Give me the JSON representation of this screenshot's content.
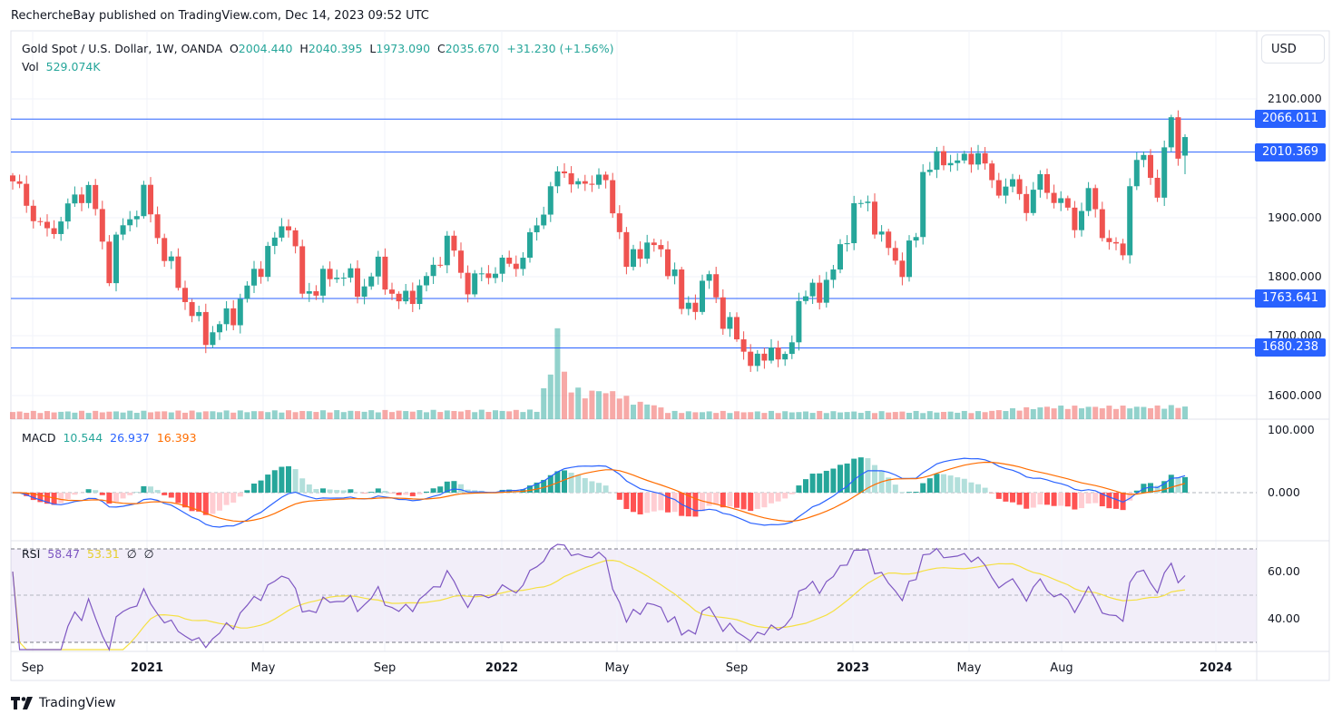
{
  "header": {
    "published": "RechercheBay published on TradingView.com, Dec 14, 2023 09:52 UTC",
    "symbol": "Gold Spot / U.S. Dollar, 1W, OANDA",
    "o_label": "O",
    "o": "2004.440",
    "h_label": "H",
    "h": "2040.395",
    "l_label": "L",
    "l": "1973.090",
    "c_label": "C",
    "c": "2035.670",
    "change": "+31.230 (+1.56%)",
    "vol_label": "Vol",
    "vol": "529.074K"
  },
  "currency": "USD",
  "macd_legend": {
    "label": "MACD",
    "hist": "10.544",
    "macd": "26.937",
    "signal": "16.393"
  },
  "rsi_legend": {
    "label": "RSI",
    "rsi": "58.47",
    "ma": "53.31",
    "n1": "∅",
    "n2": "∅"
  },
  "footer": {
    "brand": "TradingView"
  },
  "chart_data": {
    "type": "candlestick",
    "title": "Gold Spot / U.S. Dollar, 1W, OANDA",
    "colors": {
      "up": "#26a69a",
      "down": "#ef5350",
      "level": "#2962ff",
      "macd": "#2962ff",
      "signal": "#ff6d00",
      "rsi": "#7e57c2",
      "rsi_ma": "#f5e043"
    },
    "weeks": 171,
    "approx_weekly_close": [
      [
        0,
        1961
      ],
      [
        5,
        1869
      ],
      [
        9,
        1930
      ],
      [
        11,
        1953
      ],
      [
        14,
        1808
      ],
      [
        15,
        1861
      ],
      [
        19,
        1938
      ],
      [
        22,
        1838
      ],
      [
        26,
        1739
      ],
      [
        28,
        1700
      ],
      [
        32,
        1739
      ],
      [
        36,
        1823
      ],
      [
        40,
        1900
      ],
      [
        42,
        1770
      ],
      [
        46,
        1800
      ],
      [
        48,
        1808
      ],
      [
        50,
        1777
      ],
      [
        53,
        1815
      ],
      [
        56,
        1754
      ],
      [
        60,
        1793
      ],
      [
        63,
        1861
      ],
      [
        66,
        1785
      ],
      [
        69,
        1808
      ],
      [
        74,
        1831
      ],
      [
        76,
        1892
      ],
      [
        79,
        1969
      ],
      [
        80,
        1984
      ],
      [
        82,
        1946
      ],
      [
        85,
        1976
      ],
      [
        88,
        1884
      ],
      [
        89,
        1815
      ],
      [
        92,
        1861
      ],
      [
        96,
        1808
      ],
      [
        97,
        1739
      ],
      [
        99,
        1762
      ],
      [
        101,
        1800
      ],
      [
        103,
        1731
      ],
      [
        106,
        1678
      ],
      [
        108,
        1648
      ],
      [
        110,
        1686
      ],
      [
        112,
        1648
      ],
      [
        114,
        1762
      ],
      [
        117,
        1777
      ],
      [
        119,
        1808
      ],
      [
        122,
        1915
      ],
      [
        124,
        1923
      ],
      [
        126,
        1861
      ],
      [
        129,
        1815
      ],
      [
        131,
        1869
      ],
      [
        132,
        1984
      ],
      [
        136,
        2000
      ],
      [
        138,
        1991
      ],
      [
        140,
        2014
      ],
      [
        142,
        1953
      ],
      [
        145,
        1953
      ],
      [
        147,
        1923
      ],
      [
        149,
        1961
      ],
      [
        152,
        1923
      ],
      [
        154,
        1892
      ],
      [
        156,
        1938
      ],
      [
        159,
        1854
      ],
      [
        161,
        1838
      ],
      [
        162,
        1969
      ],
      [
        164,
        2000
      ],
      [
        166,
        1946
      ],
      [
        167,
        2000
      ],
      [
        168,
        2071
      ],
      [
        169,
        2007
      ],
      [
        170,
        2035.67
      ]
    ],
    "last_candle": {
      "open": 2004.44,
      "high": 2040.395,
      "low": 1973.09,
      "close": 2035.67,
      "volume_k": 529.074
    },
    "approx_volume_k": [
      [
        0,
        300
      ],
      [
        76,
        350
      ],
      [
        77,
        1200
      ],
      [
        78,
        1900
      ],
      [
        79,
        4000
      ],
      [
        80,
        1800
      ],
      [
        81,
        1300
      ],
      [
        83,
        1000
      ],
      [
        85,
        1200
      ],
      [
        88,
        1000
      ],
      [
        90,
        700
      ],
      [
        93,
        600
      ],
      [
        95,
        300
      ],
      [
        140,
        300
      ],
      [
        150,
        500
      ],
      [
        165,
        500
      ],
      [
        170,
        529
      ]
    ],
    "levels": [
      "2066.011",
      "2010.369",
      "1763.641",
      "1680.238"
    ],
    "price_ticks": [
      "2100.000",
      "1900.000",
      "1800.000",
      "1700.000",
      "1600.000"
    ],
    "macd_ticks": [
      "100.000",
      "0.000"
    ],
    "rsi_ticks": [
      "60.00",
      "40.00"
    ],
    "x_ticks": [
      {
        "label": "Sep",
        "year": false
      },
      {
        "label": "2021",
        "year": true
      },
      {
        "label": "May",
        "year": false
      },
      {
        "label": "Sep",
        "year": false
      },
      {
        "label": "2022",
        "year": true
      },
      {
        "label": "May",
        "year": false
      },
      {
        "label": "Sep",
        "year": false
      },
      {
        "label": "2023",
        "year": true
      },
      {
        "label": "May",
        "year": false
      },
      {
        "label": "Aug",
        "year": false
      },
      {
        "label": "2024",
        "year": true
      }
    ],
    "grid": true
  }
}
